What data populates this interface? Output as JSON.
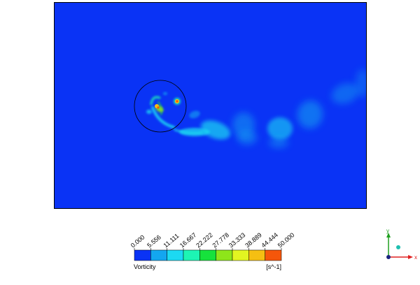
{
  "chart_data": {
    "type": "heatmap",
    "title": "",
    "variable": "Vorticity",
    "unit": "[s^-1]",
    "range": [
      0,
      50
    ],
    "ticks": [
      "0.000",
      "5.556",
      "11.111",
      "16.667",
      "22.222",
      "27.778",
      "33.333",
      "38.889",
      "44.444",
      "50.000"
    ],
    "levels": [
      "#0a33f5",
      "#13a6f0",
      "#1cd9f2",
      "#1df5b4",
      "#16e23c",
      "#8ee51a",
      "#e2f521",
      "#f5bf12",
      "#f5560a"
    ],
    "background_value": 0
  },
  "axes_triad": {
    "x_label": "x",
    "y_label": "y",
    "x_color": "#e02020",
    "y_color": "#20a020"
  }
}
